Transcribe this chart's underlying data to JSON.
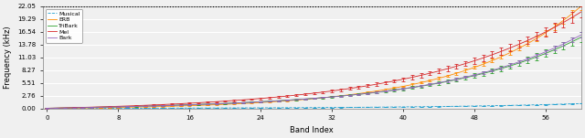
{
  "title": "",
  "xlabel": "Band Index",
  "ylabel": "Frequency (kHz)",
  "xlim": [
    -0.5,
    60
  ],
  "ylim": [
    0,
    22.05
  ],
  "yticks": [
    0.0,
    2.76,
    5.51,
    8.27,
    11.03,
    13.78,
    16.54,
    19.29,
    22.05
  ],
  "xticks": [
    0,
    8,
    16,
    24,
    32,
    40,
    48,
    56
  ],
  "hline_y": 22.05,
  "series": [
    {
      "name": "Musical",
      "color": "#1e9fcf",
      "linestyle": "--",
      "n_bands": 61
    },
    {
      "name": "ERB",
      "color": "#ff8c00",
      "linestyle": "-",
      "n_bands": 61
    },
    {
      "name": "TriBark",
      "color": "#2ca02c",
      "linestyle": "-",
      "n_bands": 61
    },
    {
      "name": "Mel",
      "color": "#d62728",
      "linestyle": "-",
      "n_bands": 61
    },
    {
      "name": "Bark",
      "color": "#9467bd",
      "linestyle": "-",
      "n_bands": 61
    }
  ],
  "figsize": [
    6.4,
    1.51
  ],
  "dpi": 100,
  "bg_color": "#f0f0f0",
  "grid_color": "white",
  "dotted_line_color": "black"
}
